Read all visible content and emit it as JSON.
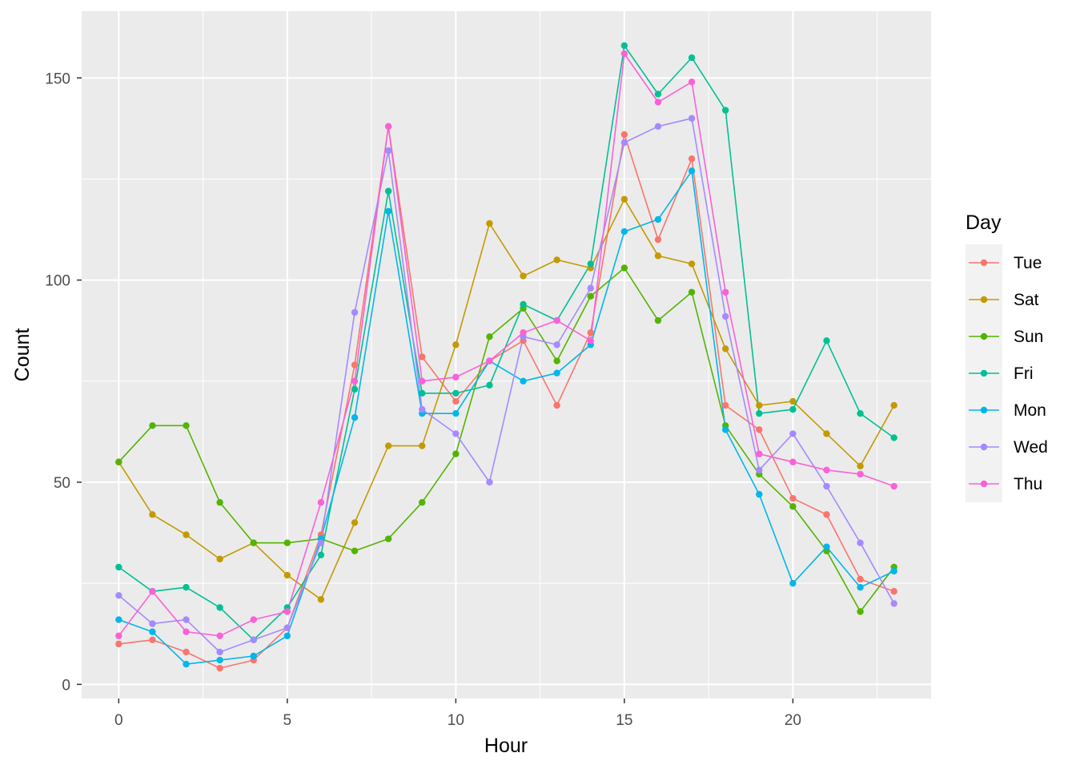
{
  "chart_data": {
    "type": "line",
    "xlabel": "Hour",
    "ylabel": "Count",
    "xlim": [
      -1.1,
      24.1
    ],
    "ylim": [
      -3.5,
      166.5
    ],
    "x_ticks": [
      0,
      5,
      10,
      15,
      20
    ],
    "y_ticks": [
      0,
      50,
      100,
      150
    ],
    "grid": true,
    "legend": {
      "title": "Day",
      "position": "right"
    },
    "x": [
      0,
      1,
      2,
      3,
      4,
      5,
      6,
      7,
      8,
      9,
      10,
      11,
      12,
      13,
      14,
      15,
      16,
      17,
      18,
      19,
      20,
      21,
      22,
      23
    ],
    "series": [
      {
        "name": "Tue",
        "color": "#F8766D",
        "values": [
          10,
          11,
          8,
          4,
          6,
          14,
          37,
          79,
          138,
          81,
          70,
          80,
          85,
          69,
          87,
          136,
          110,
          130,
          69,
          63,
          46,
          42,
          26,
          23
        ]
      },
      {
        "name": "Sat",
        "color": "#C49A00",
        "values": [
          55,
          42,
          37,
          31,
          35,
          27,
          21,
          40,
          59,
          59,
          84,
          114,
          101,
          105,
          103,
          120,
          106,
          104,
          83,
          69,
          70,
          62,
          54,
          69
        ]
      },
      {
        "name": "Sun",
        "color": "#53B400",
        "values": [
          55,
          64,
          64,
          45,
          35,
          35,
          36,
          33,
          36,
          45,
          57,
          86,
          93,
          80,
          96,
          103,
          90,
          97,
          64,
          52,
          44,
          33,
          18,
          29
        ]
      },
      {
        "name": "Fri",
        "color": "#00C094",
        "values": [
          29,
          23,
          24,
          19,
          11,
          19,
          32,
          73,
          122,
          72,
          72,
          74,
          94,
          90,
          104,
          158,
          146,
          155,
          142,
          67,
          68,
          85,
          67,
          61
        ]
      },
      {
        "name": "Mon",
        "color": "#00B6EB",
        "values": [
          16,
          13,
          5,
          6,
          7,
          12,
          36,
          66,
          117,
          67,
          67,
          80,
          75,
          77,
          84,
          112,
          115,
          127,
          63,
          47,
          25,
          34,
          24,
          28
        ]
      },
      {
        "name": "Wed",
        "color": "#A58AFF",
        "values": [
          22,
          15,
          16,
          8,
          11,
          14,
          35,
          92,
          132,
          68,
          62,
          50,
          86,
          84,
          98,
          134,
          138,
          140,
          91,
          53,
          62,
          49,
          35,
          20
        ]
      },
      {
        "name": "Thu",
        "color": "#FB61D7",
        "values": [
          12,
          23,
          13,
          12,
          16,
          18,
          45,
          75,
          138,
          75,
          76,
          80,
          87,
          90,
          85,
          156,
          144,
          149,
          97,
          57,
          55,
          53,
          52,
          49
        ]
      }
    ]
  }
}
